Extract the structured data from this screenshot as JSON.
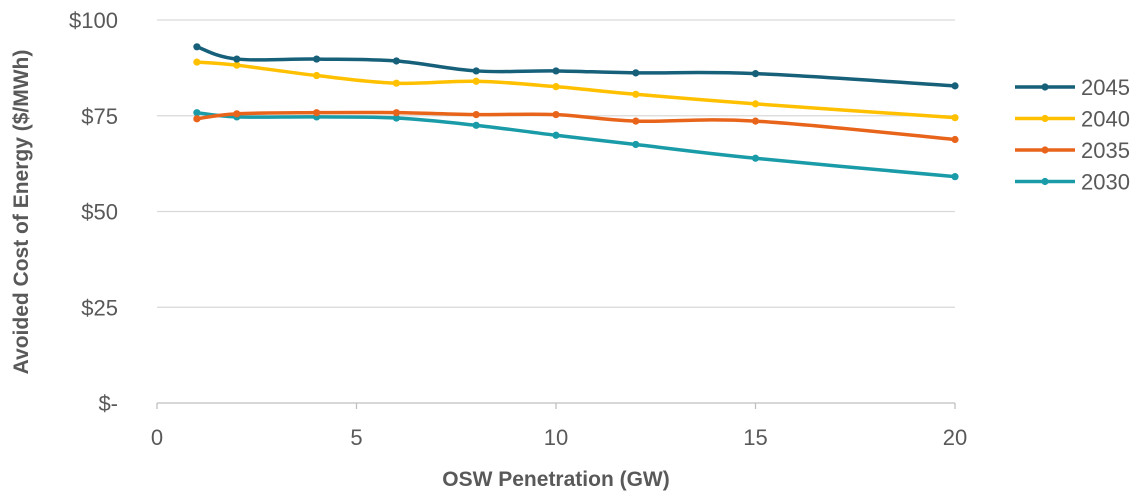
{
  "chart_data": {
    "type": "line",
    "title": "",
    "xlabel": "OSW Penetration (GW)",
    "ylabel": "Avoided Cost of Energy ($/MWh)",
    "xlim": [
      0,
      20
    ],
    "ylim": [
      0,
      100
    ],
    "x_ticks": [
      0,
      5,
      10,
      15,
      20
    ],
    "x_tick_labels": [
      "0",
      "5",
      "10",
      "15",
      "20"
    ],
    "y_ticks": [
      0,
      25,
      50,
      75,
      100
    ],
    "y_tick_labels": [
      "$-",
      "$25",
      "$50",
      "$75",
      "$100"
    ],
    "grid": "horizontal",
    "legend": "right",
    "series": [
      {
        "name": "2045",
        "color": "#17607a",
        "x": [
          1,
          2,
          4,
          6,
          8,
          10,
          12,
          15,
          20
        ],
        "y": [
          93,
          89.8,
          89.8,
          89.3,
          86.7,
          86.7,
          86.2,
          86.0,
          82.8
        ]
      },
      {
        "name": "2040",
        "color": "#ffc000",
        "x": [
          1,
          2,
          4,
          6,
          8,
          10,
          12,
          15,
          20
        ],
        "y": [
          89,
          88.2,
          85.5,
          83.5,
          84.0,
          82.6,
          80.6,
          78.1,
          74.5
        ]
      },
      {
        "name": "2035",
        "color": "#e8641b",
        "x": [
          1,
          2,
          4,
          6,
          8,
          10,
          12,
          15,
          20
        ],
        "y": [
          74.2,
          75.5,
          75.8,
          75.8,
          75.3,
          75.3,
          73.6,
          73.6,
          68.8
        ]
      },
      {
        "name": "2030",
        "color": "#1a9ba8",
        "x": [
          1,
          2,
          4,
          6,
          8,
          10,
          12,
          15,
          20
        ],
        "y": [
          75.8,
          74.7,
          74.7,
          74.4,
          72.5,
          69.9,
          67.5,
          63.9,
          59.1
        ]
      }
    ]
  }
}
